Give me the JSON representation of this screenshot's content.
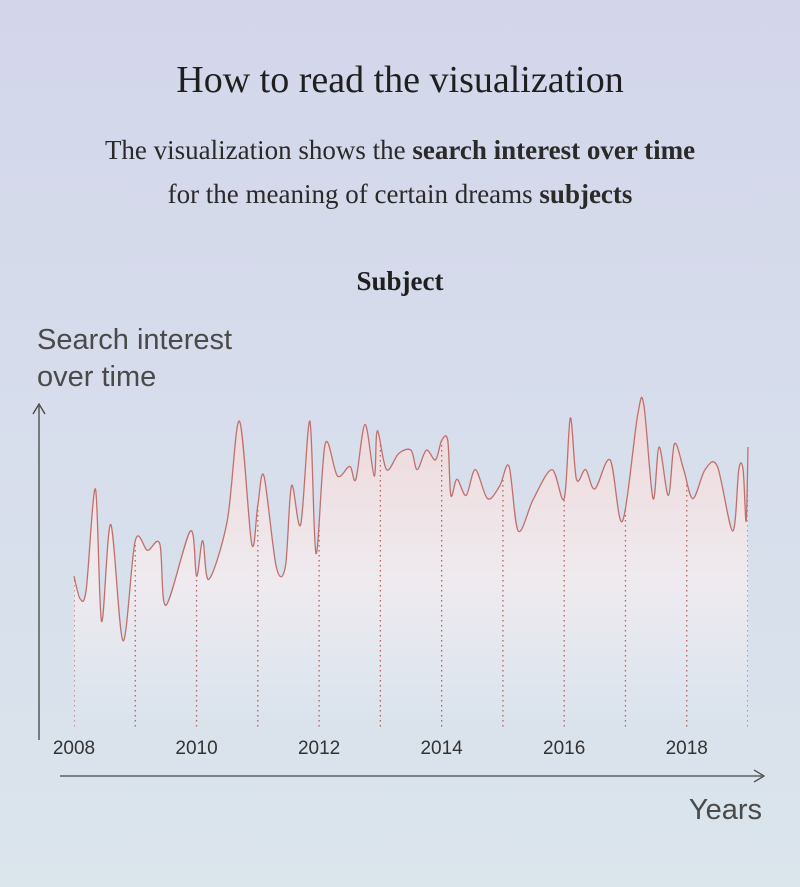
{
  "chart_data": {
    "type": "line",
    "title": "Subject",
    "heading": "How to read the visualization",
    "subtitle": [
      "The visualization shows the",
      "search interest over time",
      "for the meaning of certain dreams",
      "subjects"
    ],
    "y_label": "Search interest over time",
    "x_label": "Years",
    "color": "#c0706c",
    "x": [
      2008.0,
      2008.1,
      2008.2,
      2008.35,
      2008.45,
      2008.6,
      2008.8,
      2009.0,
      2009.2,
      2009.4,
      2009.5,
      2009.9,
      2010.0,
      2010.1,
      2010.2,
      2010.5,
      2010.7,
      2010.9,
      2011.0,
      2011.1,
      2011.3,
      2011.45,
      2011.55,
      2011.7,
      2011.85,
      2011.95,
      2012.1,
      2012.3,
      2012.5,
      2012.6,
      2012.75,
      2012.9,
      2012.95,
      2013.1,
      2013.3,
      2013.5,
      2013.6,
      2013.75,
      2013.9,
      2014.0,
      2014.1,
      2014.15,
      2014.25,
      2014.4,
      2014.55,
      2014.75,
      2014.95,
      2015.1,
      2015.25,
      2015.5,
      2015.8,
      2016.0,
      2016.1,
      2016.2,
      2016.35,
      2016.5,
      2016.75,
      2016.95,
      2017.2,
      2017.3,
      2017.45,
      2017.55,
      2017.7,
      2017.8,
      2017.95,
      2018.1,
      2018.3,
      2018.5,
      2018.75,
      2018.85,
      2018.92,
      2018.97,
      2019.0
    ],
    "values": [
      47,
      40,
      43,
      74,
      33,
      63,
      27,
      58,
      55,
      57,
      38,
      61,
      47,
      58,
      46,
      64,
      95,
      57,
      69,
      78,
      50,
      50,
      75,
      63,
      95,
      54,
      88,
      78,
      81,
      77,
      94,
      78,
      92,
      80,
      85,
      86,
      80,
      86,
      83,
      89,
      89,
      72,
      77,
      72,
      80,
      71,
      75,
      81,
      61,
      71,
      80,
      71,
      96,
      77,
      80,
      74,
      83,
      64,
      97,
      100,
      71,
      87,
      72,
      88,
      80,
      71,
      80,
      81,
      61,
      80,
      80,
      64,
      87
    ],
    "xlim": [
      2008,
      2019
    ],
    "ylim": [
      0,
      100
    ],
    "xticks": [
      2008,
      {
        "value": 2009,
        "label": null
      },
      2010,
      {
        "value": 2011,
        "label": null
      },
      2012,
      {
        "value": 2013,
        "label": null
      },
      2014,
      {
        "value": 2015,
        "label": null
      },
      2016,
      {
        "value": 2017,
        "label": null
      },
      2018,
      {
        "value": 2019,
        "label": null
      }
    ],
    "grid": true
  }
}
